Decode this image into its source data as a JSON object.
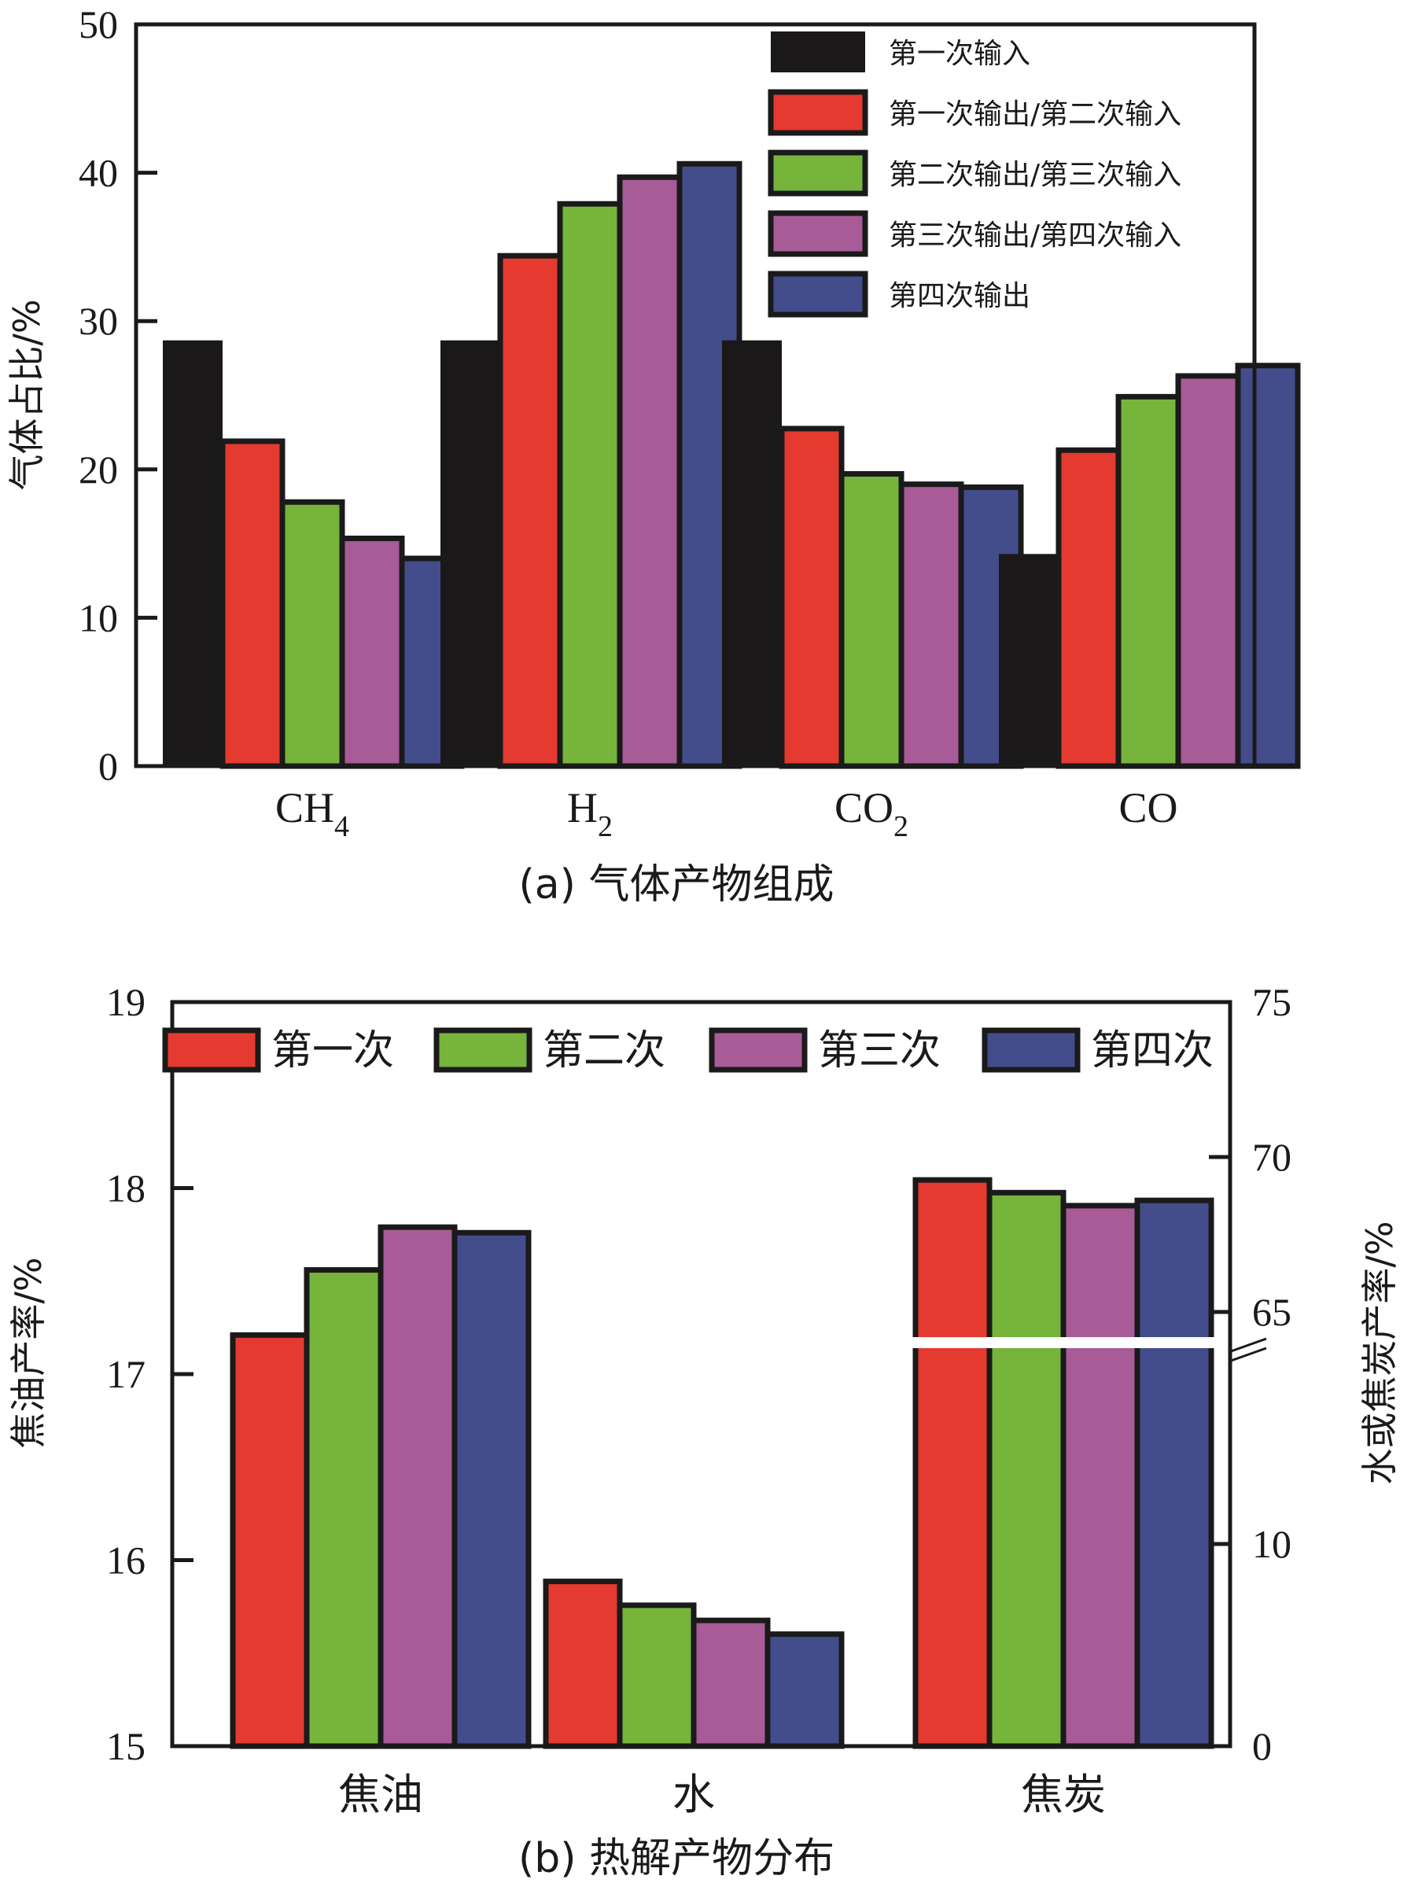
{
  "chart_data": [
    {
      "type": "bar",
      "title": "(a) 气体产物组成",
      "xlabel": "",
      "ylabel": "气体占比/%",
      "ylim": [
        0,
        50
      ],
      "yticks": [
        "0",
        "10",
        "20",
        "30",
        "40",
        "50"
      ],
      "ytick_values": [
        0,
        10,
        20,
        30,
        40,
        50
      ],
      "categories": [
        {
          "main": "CH",
          "sub": "4"
        },
        {
          "main": "H",
          "sub": "2"
        },
        {
          "main": "CO",
          "sub": "2"
        },
        {
          "main": "CO",
          "sub": ""
        }
      ],
      "legend_position": "top-right",
      "series": [
        {
          "name": "第一次输入",
          "color": "#1a1818",
          "values": [
            28.7,
            28.7,
            28.7,
            14.3
          ]
        },
        {
          "name": "第一次输出/第二次输入",
          "color": "#e43a30",
          "values": [
            21.9,
            34.4,
            22.75,
            21.3
          ]
        },
        {
          "name": "第二次输出/第三次输入",
          "color": "#76b43c",
          "values": [
            17.8,
            37.9,
            19.7,
            24.9
          ]
        },
        {
          "name": "第三次输出/第四次输入",
          "color": "#a85b96",
          "values": [
            15.35,
            39.7,
            19.0,
            26.3
          ]
        },
        {
          "name": "第四次输出",
          "color": "#444d8b",
          "values": [
            14.0,
            40.6,
            18.8,
            27.0
          ]
        }
      ],
      "grid": false
    },
    {
      "type": "bar",
      "title": "(b) 热解产物分布",
      "xlabel": "",
      "ylabel": "焦油产率/%",
      "ylim": [
        15,
        19
      ],
      "yticks": [
        "15",
        "16",
        "17",
        "18",
        "19"
      ],
      "ytick_values": [
        15,
        16,
        17,
        18,
        19
      ],
      "y2label": "水或焦炭产率/%",
      "y2_axis_break": {
        "lower": [
          0,
          10
        ],
        "upper": [
          65,
          75
        ]
      },
      "y2ticks": [
        "0",
        "10",
        "65",
        "70",
        "75"
      ],
      "y2tick_values": [
        0,
        10,
        65,
        70,
        75
      ],
      "categories": [
        "焦油",
        "水",
        "焦炭"
      ],
      "category_axis": [
        "left",
        "right-lower",
        "right-upper"
      ],
      "legend_position": "top",
      "series": [
        {
          "name": "第一次",
          "color": "#e43a30",
          "values": [
            17.21,
            8.15,
            69.26
          ]
        },
        {
          "name": "第二次",
          "color": "#76b43c",
          "values": [
            17.56,
            6.97,
            68.85
          ]
        },
        {
          "name": "第三次",
          "color": "#a85b96",
          "values": [
            17.79,
            6.22,
            68.43
          ]
        },
        {
          "name": "第四次",
          "color": "#444d8b",
          "values": [
            17.76,
            5.54,
            68.6
          ]
        }
      ],
      "grid": false
    }
  ]
}
